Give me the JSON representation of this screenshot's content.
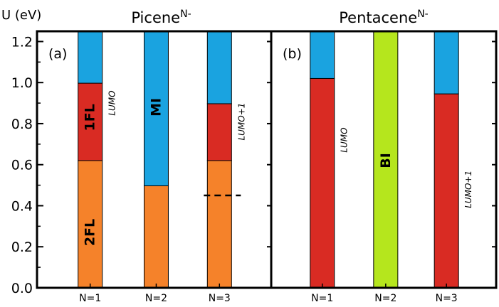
{
  "chart_data": {
    "type": "bar",
    "ylabel": "U (eV)",
    "ylim": [
      0,
      1.25
    ],
    "yticks": [
      "0.0",
      "0.2",
      "0.4",
      "0.6",
      "0.8",
      "1.0",
      "1.2"
    ],
    "colors": {
      "2FL": "#f5822a",
      "1FL": "#d92b23",
      "MI": "#1aa3e0",
      "BI": "#b5e61d",
      "frame": "#000000"
    },
    "panels": [
      {
        "tag": "(a)",
        "title": "Picene",
        "title_sup": "N-",
        "categories": [
          "N=1",
          "N=2",
          "N=3"
        ],
        "bars": [
          {
            "category": "N=1",
            "segments": [
              {
                "phase": "2FL",
                "from": 0.0,
                "to": 0.62
              },
              {
                "phase": "1FL",
                "from": 0.62,
                "to": 0.997
              },
              {
                "phase": "MI",
                "from": 0.997,
                "to": 1.25
              }
            ]
          },
          {
            "category": "N=2",
            "segments": [
              {
                "phase": "2FL",
                "from": 0.0,
                "to": 0.497
              },
              {
                "phase": "MI",
                "from": 0.497,
                "to": 1.25
              }
            ]
          },
          {
            "category": "N=3",
            "segments": [
              {
                "phase": "2FL",
                "from": 0.0,
                "to": 0.62
              },
              {
                "phase": "1FL",
                "from": 0.62,
                "to": 0.897
              },
              {
                "phase": "MI",
                "from": 0.897,
                "to": 1.25
              }
            ]
          }
        ],
        "dashed_line": {
          "x_category": "N=3",
          "y": 0.45
        },
        "phase_labels": [
          {
            "text": "2FL",
            "bar": 0,
            "y": 0.27
          },
          {
            "text": "1FL",
            "bar": 0,
            "y": 0.83
          },
          {
            "text": "MI",
            "bar": 1,
            "y": 0.88
          }
        ],
        "orbital_labels": [
          {
            "text": "LUMO",
            "bar": 0,
            "y": 0.9
          },
          {
            "text": "LUMO+1",
            "bar": 2,
            "y": 0.81
          }
        ]
      },
      {
        "tag": "(b)",
        "title": "Pentacene",
        "title_sup": "N-",
        "categories": [
          "N=1",
          "N=2",
          "N=3"
        ],
        "bars": [
          {
            "category": "N=1",
            "segments": [
              {
                "phase": "1FL",
                "from": 0.0,
                "to": 1.02
              },
              {
                "phase": "MI",
                "from": 1.02,
                "to": 1.25
              }
            ]
          },
          {
            "category": "N=2",
            "segments": [
              {
                "phase": "BI",
                "from": 0.0,
                "to": 1.25
              }
            ]
          },
          {
            "category": "N=3",
            "segments": [
              {
                "phase": "1FL",
                "from": 0.0,
                "to": 0.945
              },
              {
                "phase": "MI",
                "from": 0.945,
                "to": 1.25
              }
            ]
          }
        ],
        "phase_labels": [
          {
            "text": "BI",
            "bar": 1,
            "y": 0.62
          }
        ],
        "orbital_labels": [
          {
            "text": "LUMO",
            "bar": 0,
            "y": 0.72
          },
          {
            "text": "LUMO+1",
            "bar": 2,
            "y": 0.48
          }
        ]
      }
    ]
  }
}
